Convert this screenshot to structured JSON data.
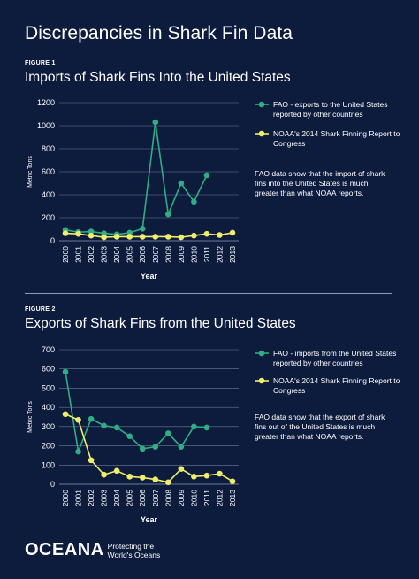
{
  "title": "Discrepancies in Shark Fin Data",
  "colors": {
    "background": "#0d1b3d",
    "fao": "#2fae84",
    "noaa": "#f0ed6a",
    "grid": "#6e7a96"
  },
  "charts": [
    {
      "figure_label": "FIGURE 1",
      "title": "Imports of Shark Fins Into the United States",
      "note": "FAO data show that the import of shark fins into the United States is much greater than what NOAA reports."
    },
    {
      "figure_label": "FIGURE 2",
      "title": "Exports of Shark Fins from the United States",
      "note": "FAO data show that the export of shark fins out of the United States is much greater than what NOAA reports."
    }
  ],
  "chart_data": [
    {
      "type": "line",
      "title": "Imports of Shark Fins Into the United States",
      "xlabel": "Year",
      "ylabel": "Metric Tons",
      "categories": [
        "2000",
        "2001",
        "2002",
        "2003",
        "2004",
        "2005",
        "2006",
        "2007",
        "2008",
        "2009",
        "2010",
        "2011",
        "2012",
        "2013"
      ],
      "ylim": [
        0,
        1200
      ],
      "yticks": [
        0,
        200,
        400,
        600,
        800,
        1000,
        1200
      ],
      "grid": true,
      "legend_position": "right",
      "series": [
        {
          "name": "FAO - exports to the United States reported by other countries",
          "values": [
            95,
            75,
            80,
            65,
            55,
            70,
            105,
            1030,
            230,
            500,
            340,
            570,
            null,
            null
          ]
        },
        {
          "name": "NOAA's 2014 Shark Finning Report to Congress",
          "values": [
            65,
            60,
            45,
            30,
            35,
            35,
            35,
            35,
            35,
            30,
            45,
            60,
            50,
            70
          ]
        }
      ]
    },
    {
      "type": "line",
      "title": "Exports of Shark Fins from the United States",
      "xlabel": "Year",
      "ylabel": "Metric Tons",
      "categories": [
        "2000",
        "2001",
        "2002",
        "2003",
        "2004",
        "2005",
        "2006",
        "2007",
        "2008",
        "2009",
        "2010",
        "2011",
        "2012",
        "2013"
      ],
      "ylim": [
        0,
        700
      ],
      "yticks": [
        0,
        100,
        200,
        300,
        400,
        500,
        600,
        700
      ],
      "grid": true,
      "legend_position": "right",
      "series": [
        {
          "name": "FAO - imports from the United States reported by other countries",
          "values": [
            585,
            170,
            340,
            305,
            295,
            250,
            185,
            195,
            265,
            195,
            300,
            295,
            null,
            null
          ]
        },
        {
          "name": "NOAA's 2014 Shark Finning Report to Congress",
          "values": [
            365,
            335,
            125,
            50,
            70,
            40,
            35,
            25,
            10,
            80,
            40,
            45,
            55,
            15
          ]
        }
      ]
    }
  ],
  "footer": {
    "logo": "OCEANA",
    "tagline_line1": "Protecting the",
    "tagline_line2": "World's Oceans"
  }
}
